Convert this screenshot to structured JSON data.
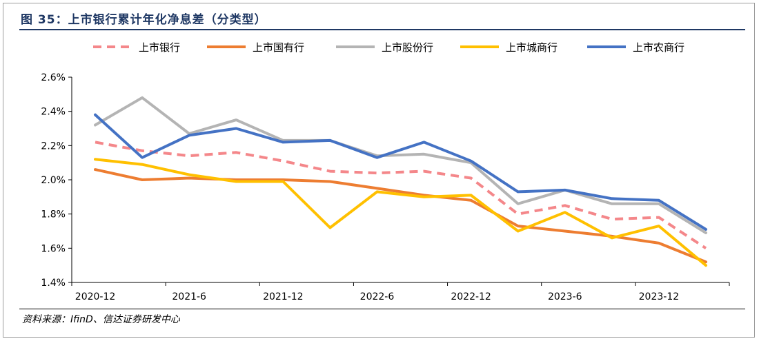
{
  "header": {
    "title": "图 35：上市银行累计年化净息差（分类型）"
  },
  "footer": {
    "source": "资料来源：IfinD、信达证券研发中心"
  },
  "chart_data": {
    "type": "line",
    "title": "",
    "xlabel": "",
    "ylabel": "",
    "ylim": [
      1.4,
      2.6
    ],
    "yticks": [
      "1.4%",
      "1.6%",
      "1.8%",
      "2.0%",
      "2.2%",
      "2.4%",
      "2.6%"
    ],
    "ytick_values": [
      1.4,
      1.6,
      1.8,
      2.0,
      2.2,
      2.4,
      2.6
    ],
    "categories": [
      "2020-12",
      "2021-3",
      "2021-6",
      "2021-9",
      "2021-12",
      "2022-3",
      "2022-6",
      "2022-9",
      "2022-12",
      "2023-3",
      "2023-6",
      "2023-9",
      "2023-12",
      "2024-3"
    ],
    "xtick_labels": [
      {
        "index": 0,
        "label": "2020-12"
      },
      {
        "index": 2,
        "label": "2021-6"
      },
      {
        "index": 4,
        "label": "2021-12"
      },
      {
        "index": 6,
        "label": "2022-6"
      },
      {
        "index": 8,
        "label": "2022-12"
      },
      {
        "index": 10,
        "label": "2023-6"
      },
      {
        "index": 12,
        "label": "2023-12"
      }
    ],
    "grid": false,
    "legend_position": "top",
    "series": [
      {
        "name": "上市银行",
        "color": "#f4878a",
        "dashed": true,
        "values": [
          2.22,
          2.17,
          2.14,
          2.16,
          2.11,
          2.05,
          2.04,
          2.05,
          2.01,
          1.8,
          1.85,
          1.77,
          1.78,
          1.6
        ]
      },
      {
        "name": "上市国有行",
        "color": "#ed7d31",
        "dashed": false,
        "values": [
          2.06,
          2.0,
          2.01,
          2.0,
          2.0,
          1.99,
          1.95,
          1.91,
          1.88,
          1.73,
          1.7,
          1.67,
          1.63,
          1.52
        ]
      },
      {
        "name": "上市股份行",
        "color": "#b4b4b4",
        "dashed": false,
        "values": [
          2.32,
          2.48,
          2.27,
          2.35,
          2.23,
          2.23,
          2.14,
          2.15,
          2.1,
          1.86,
          1.94,
          1.86,
          1.86,
          1.69
        ]
      },
      {
        "name": "上市城商行",
        "color": "#ffc000",
        "dashed": false,
        "values": [
          2.12,
          2.09,
          2.03,
          1.99,
          1.99,
          1.72,
          1.93,
          1.9,
          1.91,
          1.7,
          1.81,
          1.66,
          1.73,
          1.5
        ]
      },
      {
        "name": "上市农商行",
        "color": "#4472c4",
        "dashed": false,
        "values": [
          2.38,
          2.13,
          2.26,
          2.3,
          2.22,
          2.23,
          2.13,
          2.22,
          2.11,
          1.93,
          1.94,
          1.89,
          1.88,
          1.71
        ]
      }
    ]
  }
}
